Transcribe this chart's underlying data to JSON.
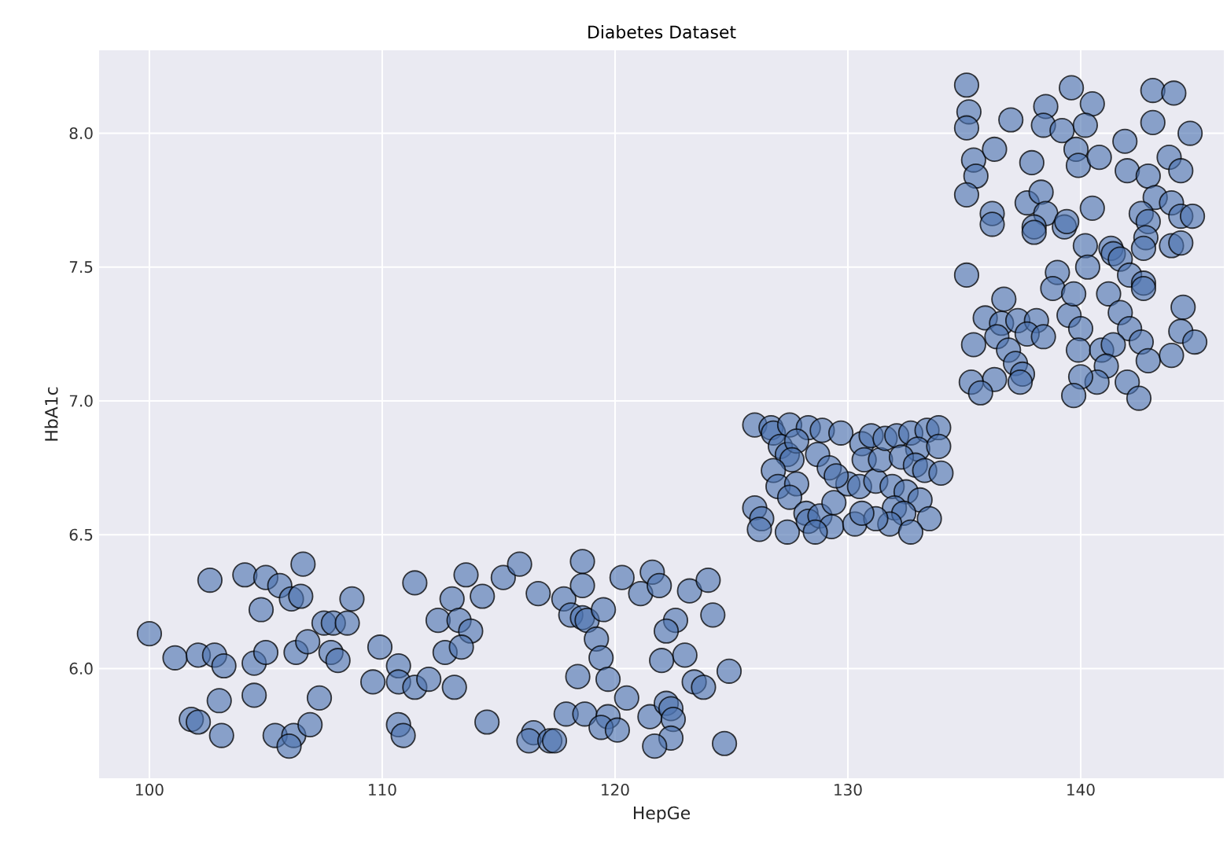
{
  "chart_data": {
    "type": "scatter",
    "title": "Diabetes Dataset",
    "xlabel": "HepGe",
    "ylabel": "HbA1c",
    "color": "#4c72b0",
    "marker": "circle",
    "grid": true,
    "xlim": [
      97.84,
      146.15
    ],
    "ylim": [
      5.59,
      8.31
    ],
    "xticks": [
      100,
      110,
      120,
      130,
      140
    ],
    "yticks": [
      {
        "value": 6,
        "label": "6.0"
      },
      {
        "value": 6.5,
        "label": "6.5"
      },
      {
        "value": 7,
        "label": "7.0"
      },
      {
        "value": 7.5,
        "label": "7.5"
      },
      {
        "value": 8,
        "label": "8.0"
      }
    ],
    "x": [
      100.0,
      101.1,
      102.1,
      102.8,
      103.2,
      102.6,
      104.1,
      105.0,
      105.6,
      106.1,
      106.5,
      106.6,
      104.8,
      104.5,
      105.0,
      106.3,
      106.8,
      107.5,
      107.9,
      108.5,
      108.7,
      107.8,
      108.1,
      103.0,
      104.5,
      107.3,
      101.8,
      102.1,
      103.1,
      105.4,
      106.2,
      106.0,
      106.9,
      109.9,
      109.6,
      110.7,
      110.7,
      111.4,
      112.0,
      113.1,
      110.7,
      110.9,
      111.4,
      113.0,
      113.6,
      114.3,
      112.4,
      113.3,
      113.8,
      112.7,
      113.4,
      114.5,
      115.2,
      115.9,
      116.7,
      117.8,
      118.6,
      118.6,
      118.1,
      118.6,
      118.8,
      119.5,
      119.2,
      119.4,
      118.4,
      119.7,
      120.5,
      117.9,
      118.7,
      119.7,
      119.4,
      120.1,
      116.5,
      116.3,
      117.2,
      117.4,
      120.3,
      121.1,
      121.6,
      121.9,
      123.2,
      124.0,
      122.6,
      122.2,
      124.2,
      122.0,
      123.0,
      123.4,
      123.8,
      124.9,
      121.5,
      122.2,
      122.4,
      122.5,
      122.4,
      121.7,
      124.7,
      126.0,
      126.7,
      126.8,
      127.5,
      128.3,
      128.9,
      129.7,
      127.1,
      127.4,
      127.8,
      127.6,
      128.7,
      129.2,
      126.8,
      127.0,
      127.8,
      127.5,
      126.0,
      126.3,
      126.2,
      127.4,
      128.2,
      128.3,
      128.8,
      129.4,
      129.3,
      128.6,
      130.3,
      130.0,
      130.5,
      131.2,
      130.6,
      130.7,
      131.4,
      131.0,
      131.6,
      132.1,
      132.7,
      133.4,
      133.9,
      133.0,
      133.9,
      132.3,
      132.9,
      133.3,
      134.0,
      131.9,
      132.5,
      133.1,
      132.0,
      132.4,
      133.5,
      131.8,
      132.7,
      131.2,
      130.6,
      129.5,
      135.1,
      135.2,
      135.1,
      135.4,
      135.5,
      135.1,
      136.3,
      137.0,
      137.9,
      138.5,
      138.4,
      139.2,
      139.6,
      140.5,
      140.2,
      139.8,
      139.9,
      140.8,
      141.9,
      142.0,
      142.9,
      143.1,
      144.0,
      143.1,
      144.7,
      143.8,
      144.3,
      143.2,
      143.9,
      144.3,
      144.8,
      142.6,
      142.9,
      142.8,
      142.7,
      143.9,
      144.3,
      140.5,
      136.2,
      136.2,
      137.7,
      138.3,
      138.5,
      138.0,
      138.0,
      139.3,
      139.4,
      140.2,
      141.3,
      141.4,
      141.7,
      140.3,
      142.1,
      142.7,
      142.7,
      139.0,
      138.8,
      135.1,
      136.7,
      135.9,
      136.6,
      137.3,
      138.1,
      137.7,
      138.4,
      136.4,
      135.4,
      136.9,
      137.2,
      137.5,
      137.4,
      136.3,
      135.3,
      135.7,
      139.5,
      139.7,
      140.0,
      141.2,
      141.7,
      142.1,
      142.6,
      142.9,
      143.9,
      144.3,
      144.9,
      144.4,
      139.9,
      140.9,
      141.4,
      141.1,
      140.7,
      140.0,
      139.7,
      142.0,
      142.5
    ],
    "values": [
      6.13,
      6.04,
      6.05,
      6.05,
      6.01,
      6.33,
      6.35,
      6.34,
      6.31,
      6.26,
      6.27,
      6.39,
      6.22,
      6.02,
      6.06,
      6.06,
      6.1,
      6.17,
      6.17,
      6.17,
      6.26,
      6.06,
      6.03,
      5.88,
      5.9,
      5.89,
      5.81,
      5.8,
      5.75,
      5.75,
      5.75,
      5.71,
      5.79,
      6.08,
      5.95,
      6.01,
      5.95,
      5.93,
      5.96,
      5.93,
      5.79,
      5.75,
      6.32,
      6.26,
      6.35,
      6.27,
      6.18,
      6.18,
      6.14,
      6.06,
      6.08,
      5.8,
      6.34,
      6.39,
      6.28,
      6.26,
      6.4,
      6.31,
      6.2,
      6.19,
      6.18,
      6.22,
      6.11,
      6.04,
      5.97,
      5.96,
      5.89,
      5.83,
      5.83,
      5.82,
      5.78,
      5.77,
      5.76,
      5.73,
      5.73,
      5.73,
      6.34,
      6.28,
      6.36,
      6.31,
      6.29,
      6.33,
      6.18,
      6.14,
      6.2,
      6.03,
      6.05,
      5.95,
      5.93,
      5.99,
      5.82,
      5.87,
      5.85,
      5.81,
      5.74,
      5.71,
      5.72,
      6.91,
      6.9,
      6.88,
      6.91,
      6.9,
      6.89,
      6.88,
      6.83,
      6.8,
      6.85,
      6.78,
      6.8,
      6.75,
      6.74,
      6.68,
      6.69,
      6.64,
      6.6,
      6.56,
      6.52,
      6.51,
      6.58,
      6.55,
      6.57,
      6.62,
      6.53,
      6.51,
      6.54,
      6.69,
      6.68,
      6.7,
      6.84,
      6.78,
      6.78,
      6.87,
      6.86,
      6.87,
      6.88,
      6.89,
      6.9,
      6.82,
      6.83,
      6.79,
      6.76,
      6.74,
      6.73,
      6.68,
      6.66,
      6.63,
      6.6,
      6.58,
      6.56,
      6.54,
      6.51,
      6.56,
      6.58,
      6.72,
      8.18,
      8.08,
      8.02,
      7.9,
      7.84,
      7.77,
      7.94,
      8.05,
      7.89,
      8.1,
      8.03,
      8.01,
      8.17,
      8.11,
      8.03,
      7.94,
      7.88,
      7.91,
      7.97,
      7.86,
      7.84,
      8.16,
      8.15,
      8.04,
      8.0,
      7.91,
      7.86,
      7.76,
      7.74,
      7.69,
      7.69,
      7.7,
      7.67,
      7.61,
      7.57,
      7.58,
      7.59,
      7.72,
      7.7,
      7.66,
      7.74,
      7.78,
      7.7,
      7.65,
      7.63,
      7.65,
      7.67,
      7.58,
      7.57,
      7.55,
      7.53,
      7.5,
      7.47,
      7.44,
      7.42,
      7.48,
      7.42,
      7.47,
      7.38,
      7.31,
      7.29,
      7.3,
      7.3,
      7.25,
      7.24,
      7.24,
      7.21,
      7.19,
      7.14,
      7.1,
      7.07,
      7.08,
      7.07,
      7.03,
      7.32,
      7.4,
      7.27,
      7.4,
      7.33,
      7.27,
      7.22,
      7.15,
      7.17,
      7.26,
      7.22,
      7.35,
      7.19,
      7.19,
      7.21,
      7.13,
      7.07,
      7.09,
      7.02,
      7.07,
      7.01
    ]
  }
}
